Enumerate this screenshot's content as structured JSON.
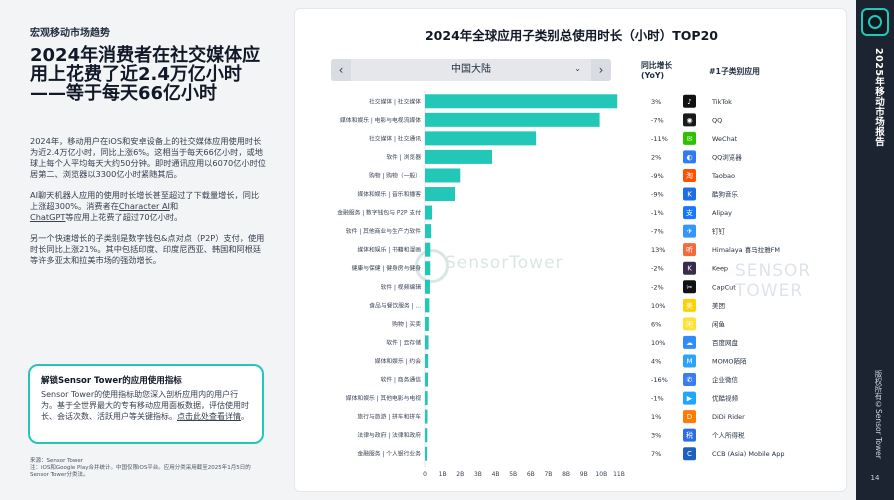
{
  "left": {
    "section_label": "宏观移动市场趋势",
    "headline_line1": "2024年消费者在社交媒体应",
    "headline_line2": "用上花费了近2.4万亿小时",
    "headline_line3": "——等于每天66亿小时",
    "para1": "2024年，移动用户在iOS和安卓设备上的社交媒体应用使用时长为近2.4万亿小时，同比上涨6%。这相当于每天66亿小时，或地球上每个人平均每天大约50分钟。即时通讯应用以6070亿小时位居第二、浏览器以3300亿小时紧随其后。",
    "para2_a": "AI聊天机器人应用的使用时长增长甚至超过了下载量增长，同比上涨超300%。消费者在",
    "para2_link1": "Character AI",
    "para2_b": "和",
    "para2_link2": "ChatGPT",
    "para2_c": "等应用上花费了超过70亿小时。",
    "para3": "另一个快速增长的子类别是数字钱包&点对点（P2P）支付，使用时长同比上涨21%。其中包括印度、印度尼西亚、韩国和阿根廷等许多亚太和拉美市场的强劲增长。",
    "callout_title": "解锁Sensor Tower的应用使用指标",
    "callout_body": "Sensor Tower的使用指标助您深入剖析应用内的用户行为。基于全世界最大的专有移动应用面板数据，评估使用时长、会话次数、活跃用户等关键指标。",
    "callout_link": "点击此处查看详情",
    "callout_end": "。",
    "footnote1": "来源：Sensor Tower",
    "footnote2": "注：iOS和Google Play合并统计。中国仅限iOS平台。应用分类采用截至2025年1月5日的",
    "footnote3": "Sensor Tower分类法。"
  },
  "chart": {
    "title": "2024年全球应用子类别总使用时长（小时）TOP20",
    "region_selected": "中国大陆",
    "col_growth_line1": "同比增长",
    "col_growth_line2": "(YoY)",
    "col_app": "#1子类别应用",
    "watermark": "SensorTower",
    "watermark2": "SENSOR TOWER"
  },
  "chart_data": {
    "type": "bar",
    "orientation": "horizontal",
    "x_unit": "B",
    "xlim": [
      0,
      11
    ],
    "x_ticks": [
      "0",
      "1B",
      "2B",
      "3B",
      "4B",
      "5B",
      "6B",
      "7B",
      "8B",
      "9B",
      "10B",
      "11B"
    ],
    "categories": [
      "社交媒体 | 社交媒体",
      "媒体和娱乐 | 电影与电视流媒体",
      "社交媒体 | 社交通讯",
      "软件 | 浏览器",
      "购物 | 购物（一般）",
      "媒体和娱乐 | 音乐和播客",
      "金融服务 | 数字钱包与 P2P 支付",
      "软件 | 其他商业与生产力软件",
      "媒体和娱乐 | 书籍和漫画",
      "健康与保健 | 健身房与健身",
      "软件 | 视频编辑",
      "食品与餐饮服务 | ...",
      "购物 | 买卖",
      "软件 | 云存储",
      "媒体和娱乐 | 约会",
      "软件 | 商务通信",
      "媒体和娱乐 | 其他电影与电视",
      "旅行与旅游 | 拼车和拼车",
      "法律与政府 | 法律和政府",
      "金融服务 | 个人银行业务"
    ],
    "values": [
      10.9,
      9.9,
      6.3,
      3.8,
      2.0,
      1.7,
      0.4,
      0.35,
      0.3,
      0.3,
      0.28,
      0.25,
      0.22,
      0.2,
      0.18,
      0.17,
      0.15,
      0.14,
      0.13,
      0.12
    ],
    "growth": [
      "3%",
      "-7%",
      "-11%",
      "2%",
      "-9%",
      "-9%",
      "-1%",
      "-7%",
      "13%",
      "-2%",
      "-2%",
      "10%",
      "6%",
      "10%",
      "4%",
      "-16%",
      "-1%",
      "1%",
      "3%",
      "7%"
    ],
    "top_apps": [
      "TikTok",
      "QQ",
      "WeChat",
      "QQ浏览器",
      "Taobao",
      "酷狗音乐",
      "Alipay",
      "钉钉",
      "Himalaya 喜马拉雅FM",
      "Keep",
      "CapCut",
      "美团",
      "闲鱼",
      "百度网盘",
      "MOMO陌陌",
      "企业微信",
      "优酷视频",
      "DiDi Rider",
      "个人所得税",
      "CCB (Asia) Mobile App"
    ],
    "app_icon_colors": [
      "#111111",
      "#1a1a1a",
      "#2dc100",
      "#2f7bf5",
      "#ff5000",
      "#1e6fe6",
      "#1677ff",
      "#3296fa",
      "#f26b3a",
      "#3a2b4a",
      "#111111",
      "#ffd100",
      "#ffe033",
      "#2f8cff",
      "#2da3f7",
      "#3b7df0",
      "#1ea7ff",
      "#ff7a00",
      "#2d6de0",
      "#1f5fbf"
    ],
    "app_icon_glyphs": [
      "♪",
      "◉",
      "✉",
      "◐",
      "淘",
      "K",
      "支",
      "✈",
      "听",
      "K",
      "✂",
      "美",
      "闲",
      "☁",
      "M",
      "✆",
      "▶",
      "D",
      "税",
      "C"
    ],
    "bar_color": "#22c7b8",
    "grid": false
  },
  "sidebar": {
    "title": "2025年移动市场报告",
    "copyright": "版权所有©Sensor Tower",
    "page": "14"
  }
}
